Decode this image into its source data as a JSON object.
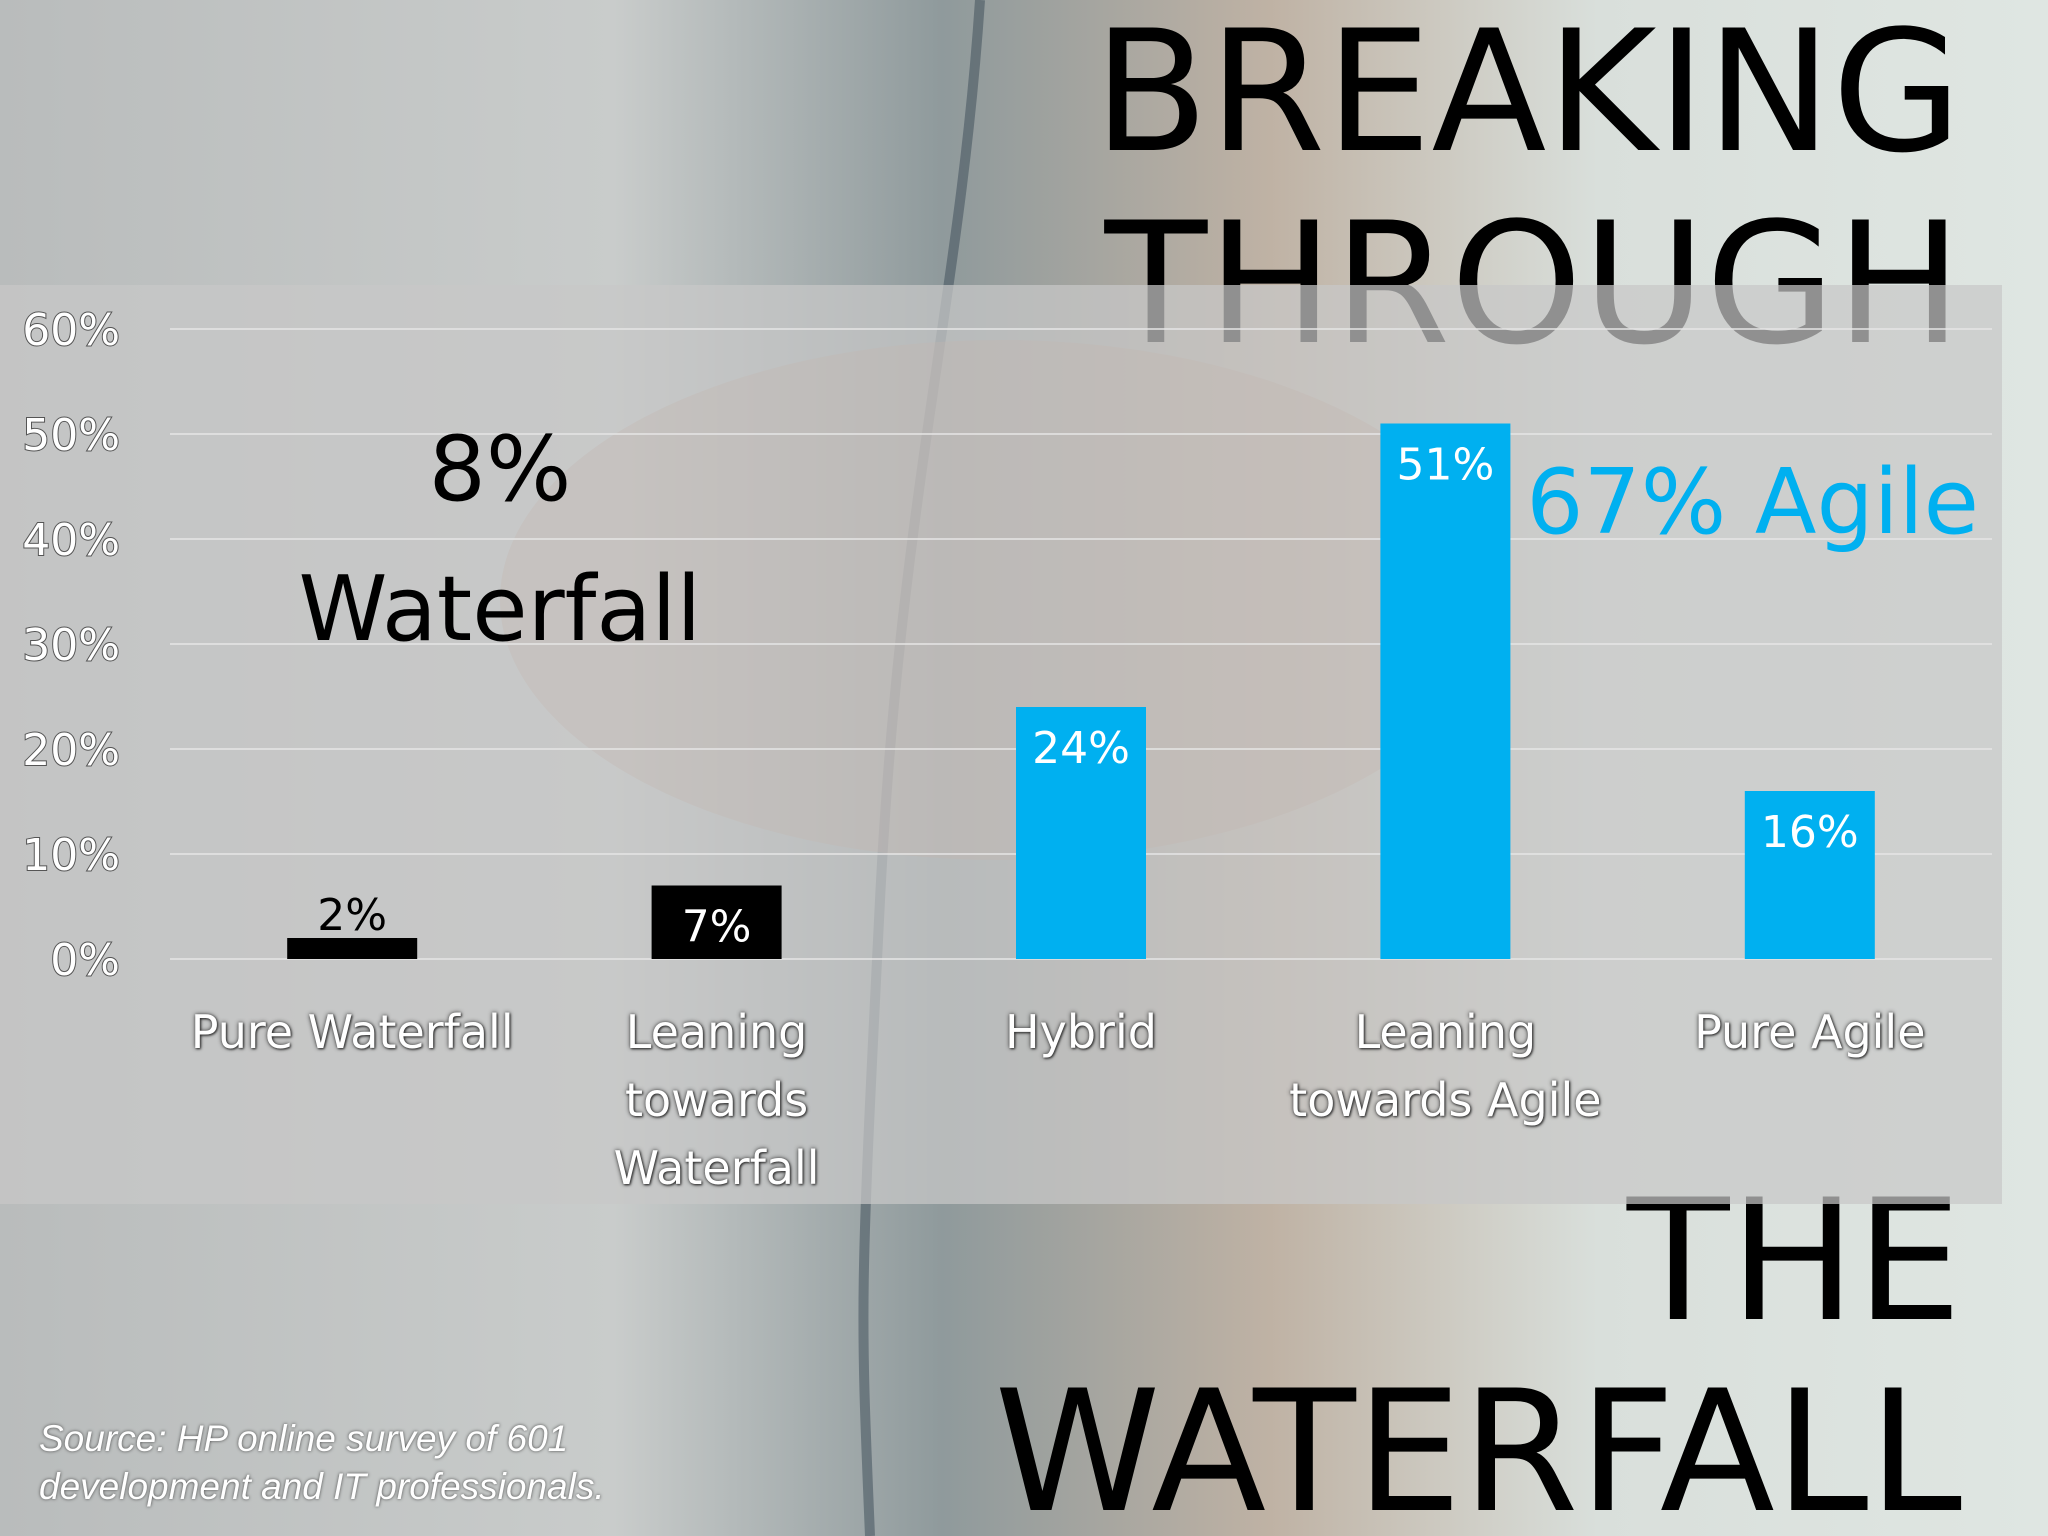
{
  "chart_data": {
    "type": "bar",
    "title": [
      "BREAKING",
      "THROUGH",
      "THE",
      "WATERFALL"
    ],
    "annotations": [
      {
        "text": "8%",
        "color": "#000000"
      },
      {
        "text": "Waterfall",
        "color": "#000000"
      },
      {
        "text": "67% Agile",
        "color": "#00b0f0"
      }
    ],
    "source": "Source: HP online survey of 601 development and IT professionals.",
    "categories": [
      "Pure Waterfall",
      "Leaning towards Waterfall",
      "Hybrid",
      "Leaning towards Agile",
      "Pure Agile"
    ],
    "values": [
      2,
      7,
      24,
      51,
      16
    ],
    "value_labels": [
      "2%",
      "7%",
      "24%",
      "51%",
      "16%"
    ],
    "colors": [
      "#000000",
      "#000000",
      "#00b0f0",
      "#00b0f0",
      "#00b0f0"
    ],
    "ylim": [
      0,
      60
    ],
    "yticks": [
      {
        "value": 0,
        "label": "0%"
      },
      {
        "value": 10,
        "label": "10%"
      },
      {
        "value": 20,
        "label": "20%"
      },
      {
        "value": 30,
        "label": "30%"
      },
      {
        "value": 40,
        "label": "40%"
      },
      {
        "value": 50,
        "label": "50%"
      },
      {
        "value": 60,
        "label": "60%"
      }
    ],
    "grid": true
  }
}
